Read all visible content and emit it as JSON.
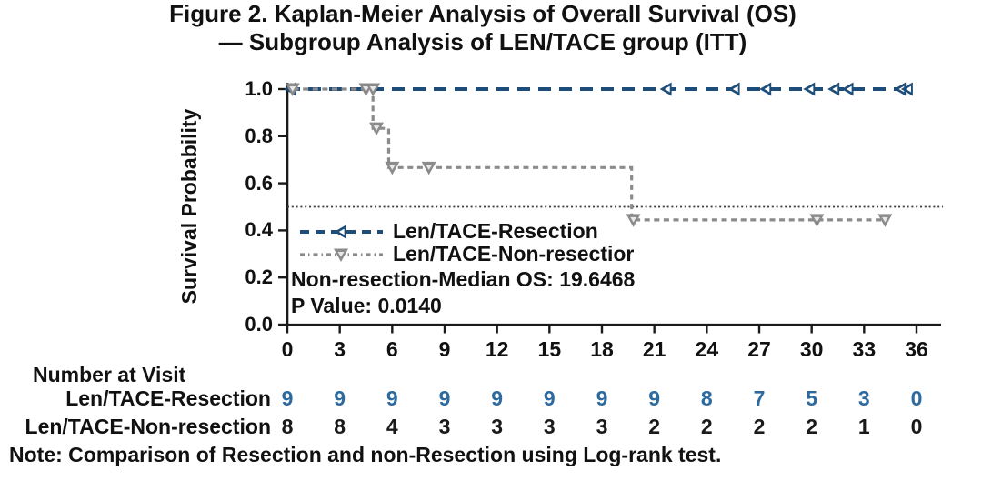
{
  "figure": {
    "title_line1": "Figure 2. Kaplan-Meier Analysis of Overall Survival (OS)",
    "title_line2": "— Subgroup Analysis of LEN/TACE group (ITT)",
    "note": "Note: Comparison of Resection and non-Resection using Log-rank test."
  },
  "chart_data": {
    "type": "line",
    "subtype": "kaplan-meier-step",
    "title": "Figure 2. Kaplan-Meier Analysis of Overall Survival (OS) — Subgroup Analysis of LEN/TACE group (ITT)",
    "xlabel": "",
    "ylabel": "Survival Probability",
    "xlim": [
      0,
      36
    ],
    "ylim": [
      0.0,
      1.0
    ],
    "xticks": [
      0,
      3,
      6,
      9,
      12,
      15,
      18,
      21,
      24,
      27,
      30,
      33,
      36
    ],
    "ytick_labels": [
      "0.0",
      "0.2",
      "0.4",
      "0.6",
      "0.8",
      "1.0"
    ],
    "grid": false,
    "reference_line_y": 0.5,
    "axis_color": "#1a1a1a",
    "series": [
      {
        "name": "Len/TACE-Resection",
        "color": "#1d4d78",
        "marker": "left-triangle",
        "line_style": "dashed",
        "steps": [
          [
            0,
            1.0
          ],
          [
            35.8,
            1.0
          ]
        ],
        "censor_marks": [
          [
            0.2,
            1.0
          ],
          [
            21.7,
            1.0
          ],
          [
            25.6,
            1.0
          ],
          [
            27.4,
            1.0
          ],
          [
            29.9,
            1.0
          ],
          [
            31.3,
            1.0
          ],
          [
            32.1,
            1.0
          ],
          [
            35.1,
            1.0
          ],
          [
            35.5,
            1.0
          ]
        ]
      },
      {
        "name": "Len/TACE-Non-resection",
        "color": "#8b8b8b",
        "marker": "down-triangle",
        "line_style": "dashed",
        "steps": [
          [
            0,
            1.0
          ],
          [
            4.9,
            1.0
          ],
          [
            4.9,
            0.8333
          ],
          [
            5.8,
            0.8333
          ],
          [
            5.8,
            0.6667
          ],
          [
            19.7,
            0.6667
          ],
          [
            19.7,
            0.4444
          ],
          [
            34.4,
            0.4444
          ]
        ],
        "censor_marks": [
          [
            0.3,
            1.0
          ],
          [
            4.5,
            1.0
          ],
          [
            4.9,
            1.0
          ],
          [
            5.1,
            0.8333
          ],
          [
            6.0,
            0.6667
          ],
          [
            8.1,
            0.6667
          ],
          [
            19.8,
            0.4444
          ],
          [
            30.3,
            0.4444
          ],
          [
            34.2,
            0.4444
          ]
        ]
      }
    ],
    "legend": {
      "position": "inside-left-middle",
      "entries": [
        "Len/TACE-Resection",
        "Len/TACE-Non-resectior"
      ]
    },
    "annotations": [
      "Non-resection-Median OS: 19.6468",
      "P Value: 0.0140"
    ],
    "risk_table": {
      "header": "Number at Visit",
      "times": [
        0,
        3,
        6,
        9,
        12,
        15,
        18,
        21,
        24,
        27,
        30,
        33,
        36
      ],
      "rows": [
        {
          "label": "Len/TACE-Resection",
          "color": "#2d6a9f",
          "values": [
            9,
            9,
            9,
            9,
            9,
            9,
            9,
            9,
            8,
            7,
            5,
            3,
            0
          ]
        },
        {
          "label": "Len/TACE-Non-resection",
          "color": "#1a1a1a",
          "values": [
            8,
            8,
            4,
            3,
            3,
            3,
            3,
            2,
            2,
            2,
            2,
            1,
            0
          ]
        }
      ]
    }
  }
}
